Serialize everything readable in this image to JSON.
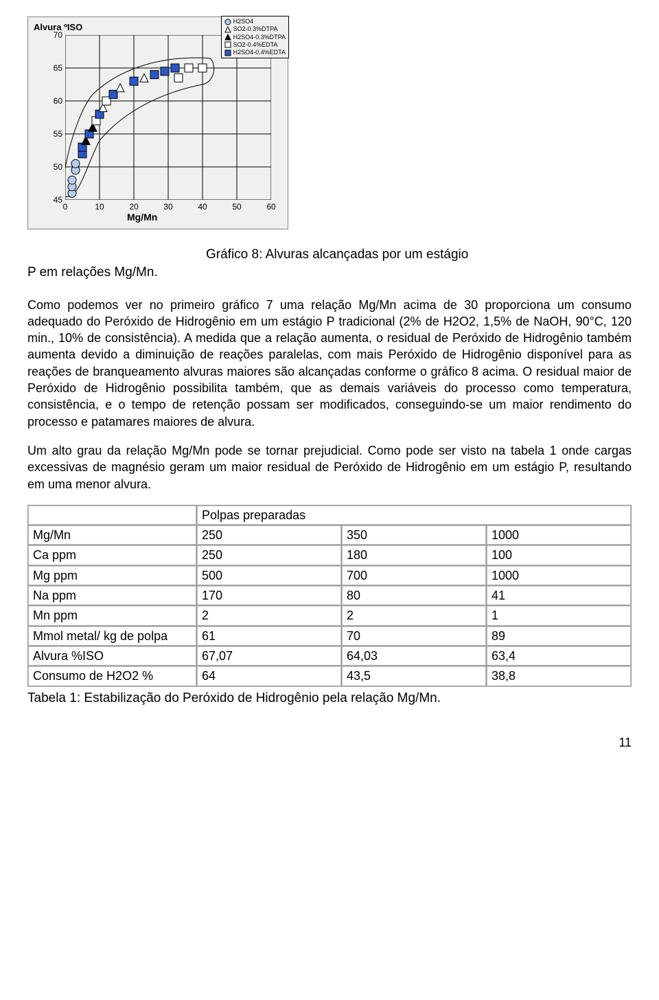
{
  "chart": {
    "type": "scatter",
    "ylabel": "Alvura ºISO",
    "xlabel": "Mg/Mn",
    "ylim": [
      45,
      70
    ],
    "ytick_step": 5,
    "yticks": [
      45,
      50,
      55,
      60,
      65,
      70
    ],
    "xlim": [
      0,
      60
    ],
    "xtick_step": 10,
    "xticks": [
      0,
      10,
      20,
      30,
      40,
      50,
      60
    ],
    "background_color": "#f0f0ee",
    "grid_color": "#000000",
    "legend_border": "#000000",
    "legend_items": [
      {
        "label": "H2SO4",
        "marker": "circle",
        "fill": "#b4cef0",
        "stroke": "#000"
      },
      {
        "label": "SO2-0.3%DTPA",
        "marker": "triangle",
        "fill": "#ffffff",
        "stroke": "#000"
      },
      {
        "label": "H2SO4-0.3%DTPA",
        "marker": "triangle",
        "fill": "#000000",
        "stroke": "#000"
      },
      {
        "label": "SO2-0.4%EDTA",
        "marker": "square",
        "fill": "#ffffff",
        "stroke": "#000"
      },
      {
        "label": "H2SO4-0.4%EDTA",
        "marker": "square",
        "fill": "#2a57c8",
        "stroke": "#000"
      }
    ],
    "cluster_outline_stroke": "#000000",
    "points": [
      {
        "x": 2,
        "y": 46,
        "marker": "circle",
        "fill": "#b4cef0"
      },
      {
        "x": 2,
        "y": 47,
        "marker": "circle",
        "fill": "#b4cef0"
      },
      {
        "x": 2,
        "y": 48,
        "marker": "circle",
        "fill": "#b4cef0"
      },
      {
        "x": 3,
        "y": 49.5,
        "marker": "circle",
        "fill": "#b4cef0"
      },
      {
        "x": 3,
        "y": 50.5,
        "marker": "circle",
        "fill": "#b4cef0"
      },
      {
        "x": 5,
        "y": 52,
        "marker": "square",
        "fill": "#2a57c8"
      },
      {
        "x": 5,
        "y": 53,
        "marker": "square",
        "fill": "#2a57c8"
      },
      {
        "x": 6,
        "y": 54,
        "marker": "triangle",
        "fill": "#000000"
      },
      {
        "x": 7,
        "y": 55,
        "marker": "square",
        "fill": "#2a57c8"
      },
      {
        "x": 8,
        "y": 56,
        "marker": "triangle",
        "fill": "#000000"
      },
      {
        "x": 9,
        "y": 57,
        "marker": "square",
        "fill": "#ffffff"
      },
      {
        "x": 10,
        "y": 58,
        "marker": "square",
        "fill": "#2a57c8"
      },
      {
        "x": 11,
        "y": 59,
        "marker": "triangle",
        "fill": "#ffffff"
      },
      {
        "x": 12,
        "y": 60,
        "marker": "square",
        "fill": "#ffffff"
      },
      {
        "x": 14,
        "y": 61,
        "marker": "square",
        "fill": "#2a57c8"
      },
      {
        "x": 16,
        "y": 62,
        "marker": "triangle",
        "fill": "#ffffff"
      },
      {
        "x": 20,
        "y": 63,
        "marker": "square",
        "fill": "#2a57c8"
      },
      {
        "x": 23,
        "y": 63.5,
        "marker": "triangle",
        "fill": "#ffffff"
      },
      {
        "x": 26,
        "y": 64,
        "marker": "square",
        "fill": "#2a57c8"
      },
      {
        "x": 29,
        "y": 64.5,
        "marker": "square",
        "fill": "#2a57c8"
      },
      {
        "x": 32,
        "y": 65,
        "marker": "square",
        "fill": "#2a57c8"
      },
      {
        "x": 33,
        "y": 63.5,
        "marker": "square",
        "fill": "#ffffff"
      },
      {
        "x": 36,
        "y": 65,
        "marker": "square",
        "fill": "#ffffff"
      },
      {
        "x": 40,
        "y": 65,
        "marker": "square",
        "fill": "#ffffff"
      }
    ]
  },
  "caption": {
    "left": "P em relações Mg/Mn.",
    "right": "Gráfico 8: Alvuras alcançadas por um estágio"
  },
  "para1": "Como podemos ver no primeiro gráfico 7 uma relação Mg/Mn acima de 30 proporciona um consumo adequado do Peróxido de Hidrogênio em um estágio P tradicional (2% de H2O2, 1,5% de NaOH, 90°C, 120 min., 10% de consistência). A medida que a relação aumenta, o residual de Peróxido de Hidrogênio também aumenta devido a diminuição de reações paralelas, com mais Peróxido de Hidrogênio disponível para as reações de branqueamento alvuras maiores são alcançadas conforme o gráfico 8 acima. O residual maior de Peróxido de Hidrogênio possibilita também, que as demais variáveis do processo como temperatura, consistência, e o tempo de retenção possam ser modificados, conseguindo-se um maior rendimento do processo e patamares maiores de alvura.",
  "para2": "Um alto grau da relação Mg/Mn pode se tornar prejudicial. Como pode ser visto na tabela 1 onde cargas excessivas de magnésio geram um maior residual de Peróxido de Hidrogênio em um estágio P, resultando em uma menor alvura.",
  "table": {
    "header_spanned": "Polpas preparadas",
    "rows": [
      [
        "Mg/Mn",
        "250",
        "350",
        "1000"
      ],
      [
        "Ca ppm",
        "250",
        "180",
        "100"
      ],
      [
        "Mg ppm",
        "500",
        "700",
        "1000"
      ],
      [
        "Na ppm",
        "170",
        "80",
        "41"
      ],
      [
        "Mn ppm",
        "2",
        "2",
        "1"
      ],
      [
        "Mmol metal/ kg de polpa",
        "61",
        "70",
        "89"
      ],
      [
        "Alvura %ISO",
        "67,07",
        "64,03",
        "63,4"
      ],
      [
        "Consumo de H2O2 %",
        "64",
        "43,5",
        "38,8"
      ]
    ],
    "caption": "Tabela 1: Estabilização do Peróxido de Hidrogênio pela relação Mg/Mn."
  },
  "page_number": "11"
}
